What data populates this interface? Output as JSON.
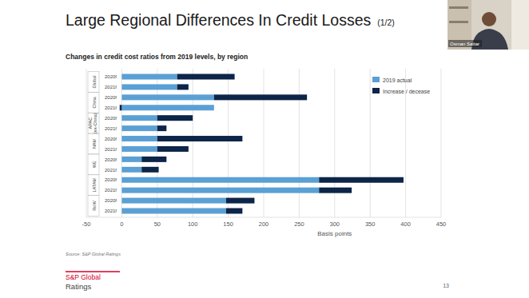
{
  "slide": {
    "title": "Large Regional Differences In Credit Losses",
    "title_part": "(1/2)",
    "speaker": "Osman Sattar",
    "logo": [
      "S&P Global",
      "Ratings"
    ],
    "page": "13"
  },
  "chart_data": {
    "type": "bar",
    "orientation": "horizontal",
    "stacked": true,
    "grid": true,
    "legend": "top-right",
    "title": "Changes in credit cost ratios from 2019 levels, by region",
    "x_label": "Basis points",
    "source": "Source: S&P Global Ratings",
    "groups": [
      "Global",
      "China",
      "APAC (ex-China)",
      "NAM",
      "WE",
      "LATAM",
      "RoW"
    ],
    "categories": [
      "2020f",
      "2021f",
      "2020f",
      "2021f",
      "2020f",
      "2021f",
      "2020f",
      "2021f",
      "2020f",
      "2021f",
      "2020f",
      "2021f",
      "2020f",
      "2021f"
    ],
    "series": [
      {
        "name": "2019 actual",
        "color": "#5aa0d4",
        "values": [
          78,
          78,
          130,
          130,
          50,
          50,
          50,
          50,
          28,
          28,
          278,
          278,
          147,
          147
        ]
      },
      {
        "name": "Increase / decease",
        "color": "#0c2548",
        "values": [
          81,
          16,
          131,
          -3,
          50,
          13,
          120,
          44,
          35,
          24,
          119,
          46,
          40,
          23
        ]
      }
    ],
    "xlim": [
      -50,
      450
    ],
    "xticks": [
      -50,
      0,
      50,
      100,
      150,
      200,
      250,
      300,
      350,
      400,
      450
    ]
  }
}
